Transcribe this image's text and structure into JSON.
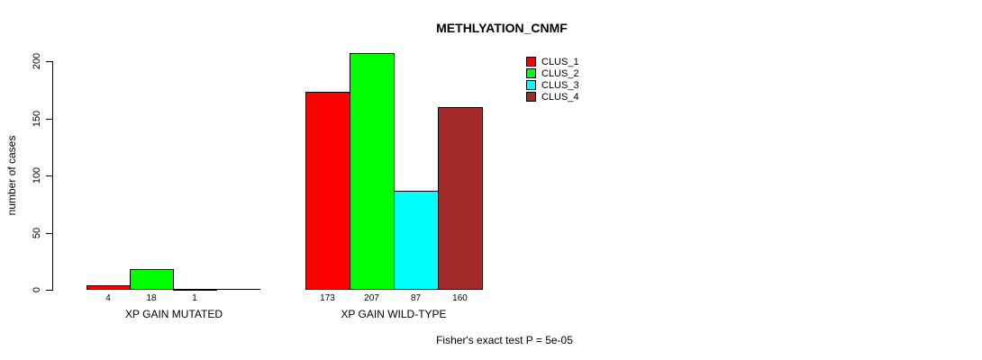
{
  "title": "METHLYATION_CNMF",
  "footer": "Fisher's exact test P = 5e-05",
  "y_axis": {
    "label": "number of cases",
    "ticks": [
      0,
      50,
      100,
      150,
      200
    ]
  },
  "legend": [
    {
      "label": "CLUS_1",
      "color": "#ff0000"
    },
    {
      "label": "CLUS_2",
      "color": "#00ff00"
    },
    {
      "label": "CLUS_3",
      "color": "#00ffff"
    },
    {
      "label": "CLUS_4",
      "color": "#a52a2a"
    }
  ],
  "chart_data": {
    "type": "bar",
    "title": "METHLYATION_CNMF",
    "xlabel": "",
    "ylabel": "number of cases",
    "ylim": [
      0,
      200
    ],
    "grid": false,
    "legend_position": "top-right",
    "categories": [
      "XP GAIN MUTATED",
      "XP GAIN WILD-TYPE"
    ],
    "series": [
      {
        "name": "CLUS_1",
        "color": "#ff0000",
        "values": [
          4,
          173
        ]
      },
      {
        "name": "CLUS_2",
        "color": "#00ff00",
        "values": [
          18,
          207
        ]
      },
      {
        "name": "CLUS_3",
        "color": "#00ffff",
        "values": [
          1,
          87
        ]
      },
      {
        "name": "CLUS_4",
        "color": "#a52a2a",
        "values": [
          0,
          160
        ]
      }
    ],
    "bar_value_labels": [
      [
        "4",
        "18",
        "1",
        ""
      ],
      [
        "173",
        "207",
        "87",
        "160"
      ]
    ],
    "annotation": "Fisher's exact test P = 5e-05"
  }
}
